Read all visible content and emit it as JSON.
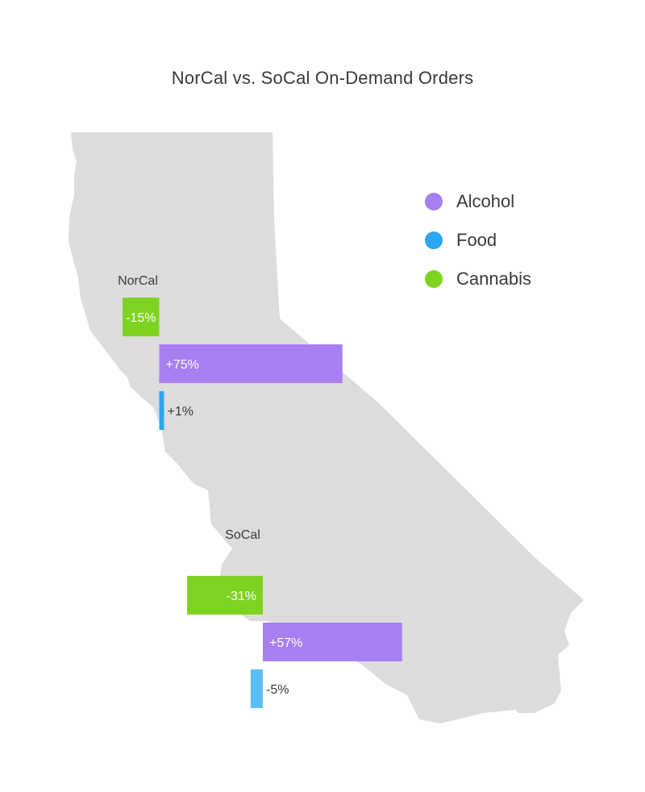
{
  "chart_data": {
    "type": "bar",
    "orientation": "horizontal-diverging",
    "title": "NorCal vs. SoCal On-Demand Orders",
    "unit": "%",
    "legend": [
      {
        "name": "Alcohol",
        "color": "#a77ff1"
      },
      {
        "name": "Food",
        "color": "#2aa6f3"
      },
      {
        "name": "Cannabis",
        "color": "#7ed321"
      }
    ],
    "groups": [
      {
        "name": "NorCal",
        "bars": [
          {
            "series": "Cannabis",
            "value": -15,
            "label": "-15%"
          },
          {
            "series": "Alcohol",
            "value": 75,
            "label": "+75%"
          },
          {
            "series": "Food",
            "value": 1,
            "label": "+1%"
          }
        ]
      },
      {
        "name": "SoCal",
        "bars": [
          {
            "series": "Cannabis",
            "value": -31,
            "label": "-31%"
          },
          {
            "series": "Alcohol",
            "value": 57,
            "label": "+57%"
          },
          {
            "series": "Food",
            "value": -5,
            "label": "-5%"
          }
        ]
      }
    ]
  },
  "colors": {
    "map_fill": "#dcdcdc",
    "background": "#ffffff",
    "food_bar_socal": "#5bbdf5"
  }
}
